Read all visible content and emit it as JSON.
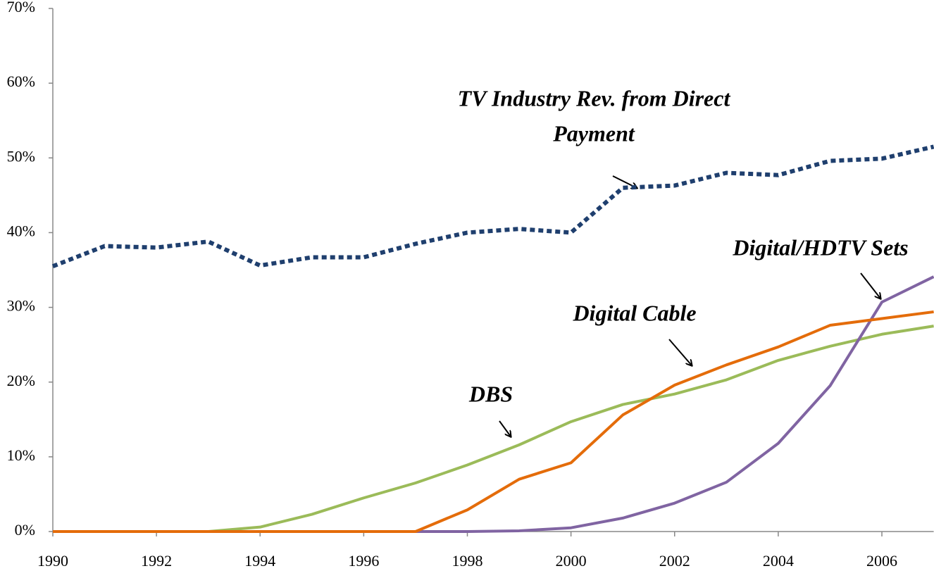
{
  "chart_data": {
    "type": "line",
    "x": [
      1990,
      1991,
      1992,
      1993,
      1994,
      1995,
      1996,
      1997,
      1998,
      1999,
      2000,
      2001,
      2002,
      2003,
      2004,
      2005,
      2006,
      2007
    ],
    "series": [
      {
        "name": "TV Industry Rev. from Direct Payment",
        "color": "#1f3f6e",
        "dashed": true,
        "values": [
          35.5,
          38.2,
          38,
          38.8,
          35.6,
          36.7,
          36.7,
          38.5,
          40,
          40.5,
          40,
          46,
          46.3,
          48,
          47.7,
          49.6,
          49.9,
          51.5
        ]
      },
      {
        "name": "DBS",
        "color": "#9bbb59",
        "values": [
          0,
          0,
          0,
          0,
          0.6,
          2.3,
          4.5,
          6.5,
          8.9,
          11.6,
          14.7,
          17,
          18.4,
          20.3,
          22.9,
          24.8,
          26.4,
          27.5
        ]
      },
      {
        "name": "Digital/HDTV Sets",
        "color": "#8064a2",
        "values": [
          null,
          null,
          null,
          null,
          null,
          null,
          null,
          0,
          0,
          0.1,
          0.5,
          1.8,
          3.8,
          6.6,
          11.8,
          19.5,
          30.7,
          34.1
        ]
      },
      {
        "name": "Digital Cable",
        "color": "#e46c0a",
        "values": [
          0,
          0,
          0,
          0,
          0,
          0,
          0,
          0,
          2.9,
          7,
          9.2,
          15.6,
          19.6,
          22.3,
          24.7,
          27.6,
          28.5,
          29.4
        ]
      }
    ],
    "annotations": [
      [
        "TV Industry Rev. from Direct",
        "Payment"
      ],
      [
        "Digital/HDTV Sets"
      ],
      [
        "Digital Cable"
      ],
      [
        "DBS"
      ]
    ],
    "xlim": [
      1990,
      2007
    ],
    "xticks": [
      1990,
      1992,
      1994,
      1996,
      1998,
      2000,
      2002,
      2004,
      2006
    ],
    "ylim": [
      0,
      70
    ],
    "yticks": [
      {
        "value": 0,
        "label": "0%"
      },
      {
        "value": 10,
        "label": "10%"
      },
      {
        "value": 20,
        "label": "20%"
      },
      {
        "value": 30,
        "label": "30%"
      },
      {
        "value": 40,
        "label": "40%"
      },
      {
        "value": 50,
        "label": "50%"
      },
      {
        "value": 60,
        "label": "60%"
      },
      {
        "value": 70,
        "label": "70%"
      }
    ]
  }
}
